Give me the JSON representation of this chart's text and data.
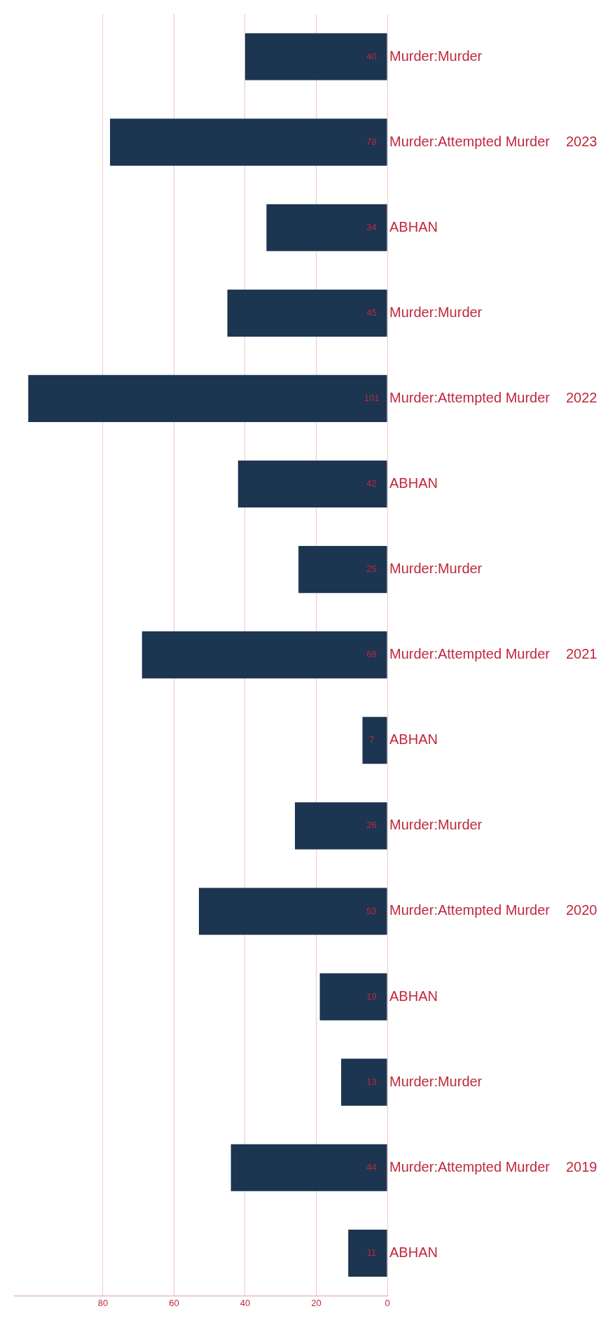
{
  "chart_data": {
    "type": "bar",
    "orientation": "horizontal",
    "categories": [
      "Murder:Murder",
      "Murder:Attempted Murder",
      "ABHAN",
      "Murder:Murder",
      "Murder:Attempted Murder",
      "ABHAN",
      "Murder:Murder",
      "Murder:Attempted Murder",
      "ABHAN",
      "Murder:Murder",
      "Murder:Attempted Murder",
      "ABHAN",
      "Murder:Murder",
      "Murder:Attempted Murder",
      "ABHAN"
    ],
    "values": [
      40,
      78,
      34,
      45,
      101,
      42,
      25,
      69,
      7,
      26,
      53,
      19,
      13,
      44,
      11
    ],
    "color": "#1c3550",
    "data_labels": true,
    "xlim": [
      105,
      0
    ],
    "xticks": [
      0,
      20,
      40,
      60,
      80
    ],
    "grid": "x",
    "annotations": [
      "2023",
      "2022",
      "2021",
      "2020",
      "2019"
    ]
  }
}
